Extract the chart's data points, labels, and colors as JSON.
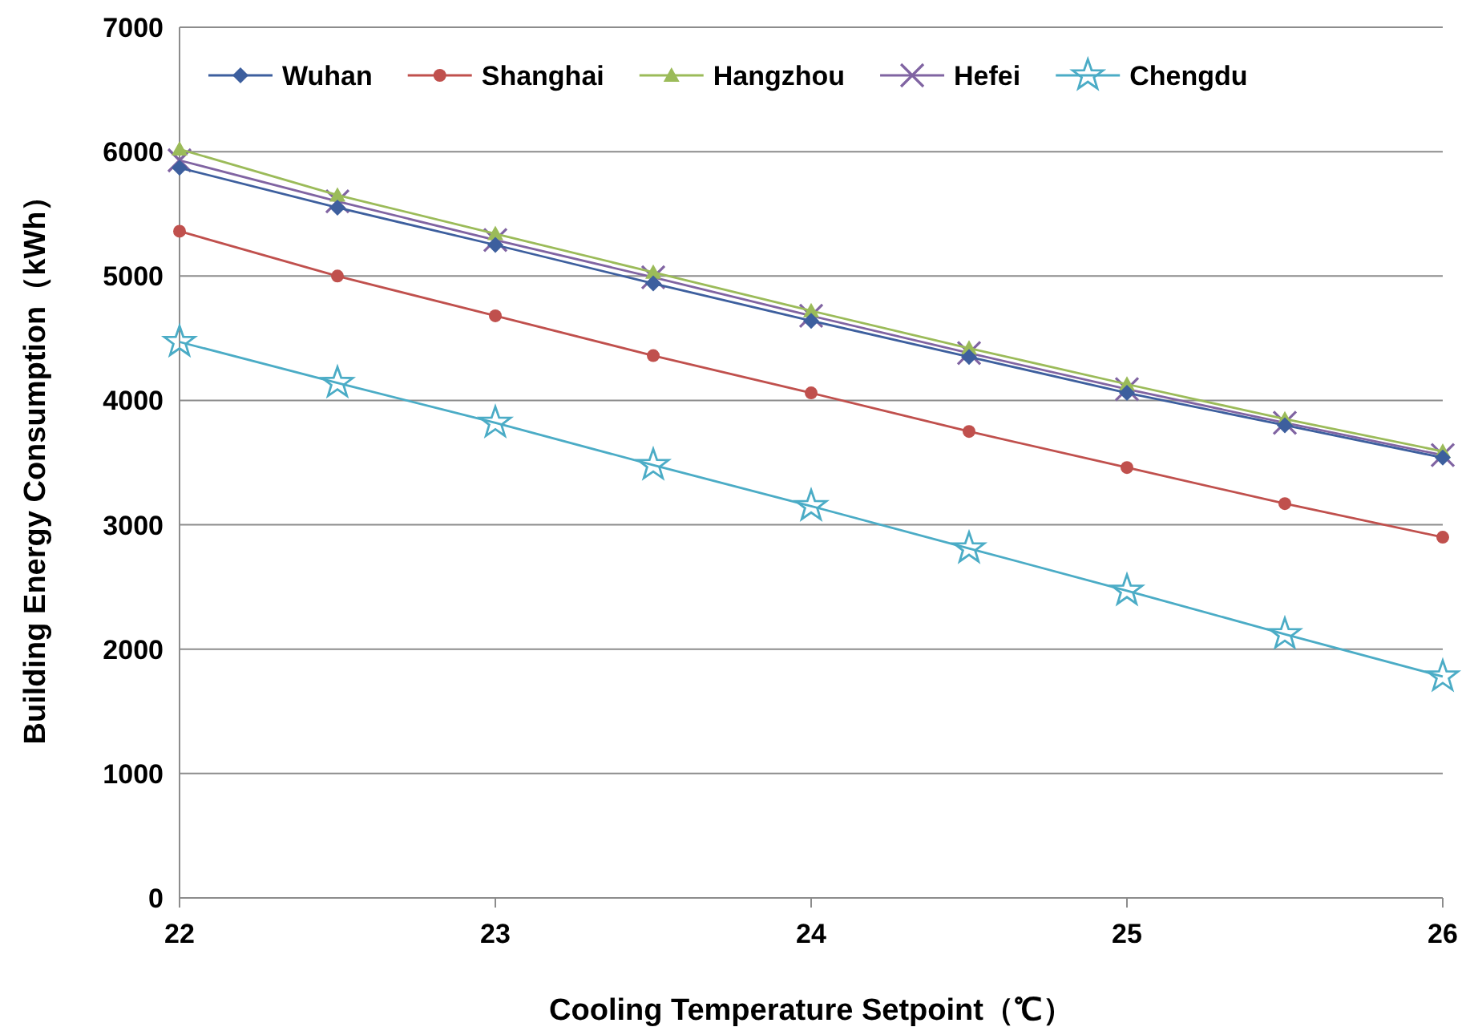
{
  "chart_data": {
    "type": "line",
    "xlabel": "Cooling Temperature Setpoint（℃）",
    "ylabel": "Building Energy Consumption（kWh）",
    "x": [
      22,
      22.5,
      23,
      23.5,
      24,
      24.5,
      25,
      25.5,
      26
    ],
    "xlim": [
      22,
      26
    ],
    "xticks": [
      22,
      23,
      24,
      25,
      26
    ],
    "ylim": [
      0,
      7000
    ],
    "yticks": [
      0,
      1000,
      2000,
      3000,
      4000,
      5000,
      6000,
      7000
    ],
    "grid": "y",
    "legend": "top",
    "line_style": "solid",
    "series": [
      {
        "name": "Wuhan",
        "color": "#3d5f9e",
        "marker": "diamond",
        "values": [
          5870,
          5550,
          5250,
          4940,
          4640,
          4350,
          4060,
          3800,
          3540
        ]
      },
      {
        "name": "Shanghai",
        "color": "#c0504d",
        "marker": "circle",
        "values": [
          5360,
          5000,
          4680,
          4360,
          4060,
          3750,
          3460,
          3170,
          2900
        ]
      },
      {
        "name": "Hangzhou",
        "color": "#9bbb59",
        "marker": "triangle",
        "values": [
          6020,
          5650,
          5340,
          5030,
          4720,
          4420,
          4130,
          3850,
          3590
        ]
      },
      {
        "name": "Hefei",
        "color": "#8064a2",
        "marker": "cross",
        "values": [
          5930,
          5600,
          5290,
          4990,
          4680,
          4380,
          4090,
          3820,
          3560
        ]
      },
      {
        "name": "Chengdu",
        "color": "#4bacc6",
        "marker": "star",
        "values": [
          4470,
          4140,
          3820,
          3480,
          3150,
          2810,
          2470,
          2120,
          1780
        ]
      }
    ]
  }
}
